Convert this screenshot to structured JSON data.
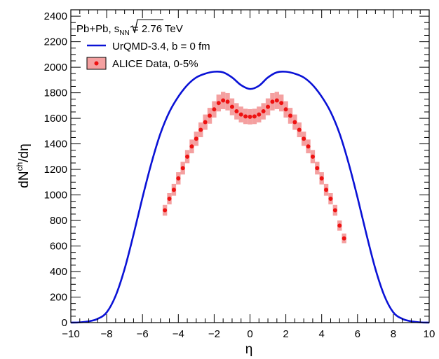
{
  "chart_data": {
    "type": "line",
    "title": "",
    "xlabel": "η",
    "ylabel_parts": {
      "base": "dN",
      "sup": "ch",
      "tail": "/dη"
    },
    "xlim": [
      -10,
      10
    ],
    "ylim": [
      0,
      2450
    ],
    "x_ticks": [
      -10,
      -8,
      -6,
      -4,
      -2,
      0,
      2,
      4,
      6,
      8,
      10
    ],
    "y_ticks": [
      0,
      200,
      400,
      600,
      800,
      1000,
      1200,
      1400,
      1600,
      1800,
      2000,
      2200,
      2400
    ],
    "grid": false,
    "legend": {
      "placement": "top-left",
      "header": {
        "prefix": "Pb+Pb, ",
        "root": "s",
        "sub": "NN",
        "suffix": " = 2.76 TeV"
      },
      "entries": [
        "UrQMD-3.4, b = 0 fm",
        "ALICE Data, 0-5%"
      ]
    },
    "series": [
      {
        "name": "UrQMD-3.4, b = 0 fm",
        "kind": "line",
        "color": "#0a12d6",
        "x": [
          -10,
          -9.5,
          -9,
          -8.5,
          -8,
          -7.5,
          -7,
          -6.5,
          -6,
          -5.5,
          -5,
          -4.5,
          -4,
          -3.5,
          -3,
          -2.5,
          -2,
          -1.5,
          -1,
          -0.5,
          0,
          0.5,
          1,
          1.5,
          2,
          2.5,
          3,
          3.5,
          4,
          4.5,
          5,
          5.5,
          6,
          6.5,
          7,
          7.5,
          8,
          8.5,
          9,
          9.5,
          10
        ],
        "y": [
          0,
          2,
          10,
          30,
          80,
          210,
          420,
          690,
          980,
          1250,
          1480,
          1650,
          1770,
          1860,
          1920,
          1950,
          1965,
          1960,
          1920,
          1860,
          1830,
          1855,
          1920,
          1960,
          1965,
          1950,
          1920,
          1860,
          1770,
          1650,
          1480,
          1250,
          980,
          690,
          420,
          210,
          80,
          30,
          10,
          2,
          0
        ]
      },
      {
        "name": "ALICE Data, 0-5%",
        "kind": "points",
        "color": "#ee1111",
        "band_color": "#f4a0a0",
        "x": [
          -4.75,
          -4.5,
          -4.25,
          -4.0,
          -3.75,
          -3.5,
          -3.25,
          -3.0,
          -2.75,
          -2.5,
          -2.25,
          -2.0,
          -1.75,
          -1.5,
          -1.25,
          -1.0,
          -0.75,
          -0.5,
          -0.25,
          0.0,
          0.25,
          0.5,
          0.75,
          1.0,
          1.25,
          1.5,
          1.75,
          2.0,
          2.25,
          2.5,
          2.75,
          3.0,
          3.25,
          3.5,
          3.75,
          4.0,
          4.25,
          4.5,
          4.75,
          5.0,
          5.25
        ],
        "y": [
          880,
          970,
          1040,
          1130,
          1210,
          1300,
          1380,
          1440,
          1510,
          1570,
          1620,
          1670,
          1720,
          1740,
          1730,
          1690,
          1655,
          1630,
          1615,
          1612,
          1615,
          1630,
          1655,
          1690,
          1730,
          1740,
          1720,
          1670,
          1620,
          1570,
          1510,
          1440,
          1380,
          1300,
          1210,
          1130,
          1040,
          970,
          880,
          760,
          660
        ],
        "err": [
          42,
          44,
          46,
          48,
          50,
          52,
          54,
          56,
          58,
          60,
          62,
          64,
          66,
          68,
          68,
          66,
          64,
          62,
          60,
          60,
          60,
          62,
          64,
          66,
          68,
          68,
          66,
          64,
          62,
          60,
          58,
          56,
          54,
          52,
          50,
          48,
          46,
          44,
          42,
          40,
          38
        ]
      }
    ]
  }
}
